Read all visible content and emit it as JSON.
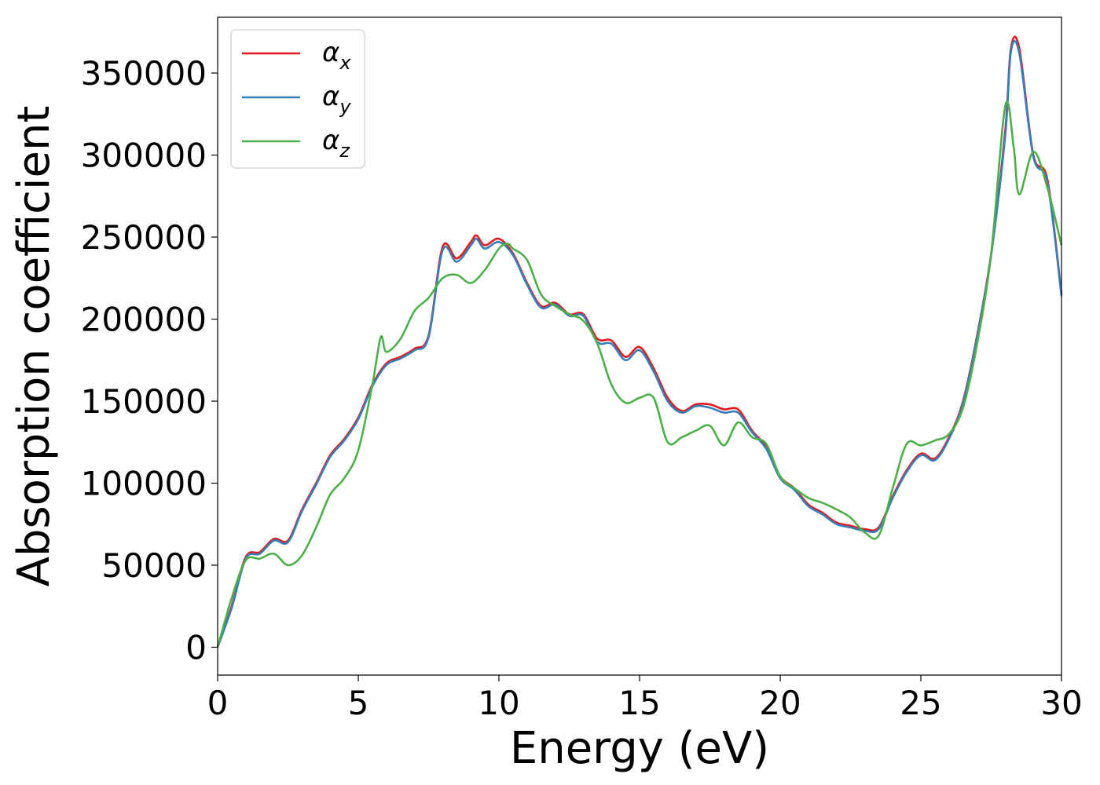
{
  "chart_data": {
    "type": "line",
    "title": "",
    "xlabel": "Energy (eV)",
    "ylabel": "Absorption coefficient",
    "xlim": [
      0,
      30
    ],
    "ylim": [
      -17000,
      384000
    ],
    "xticks": [
      0,
      5,
      10,
      15,
      20,
      25,
      30
    ],
    "xtick_labels": [
      "0",
      "5",
      "10",
      "15",
      "20",
      "25",
      "30"
    ],
    "yticks": [
      0,
      50000,
      100000,
      150000,
      200000,
      250000,
      300000,
      350000
    ],
    "ytick_labels": [
      "0",
      "50000",
      "100000",
      "150000",
      "200000",
      "250000",
      "300000",
      "350000"
    ],
    "grid": false,
    "legend_position": "top-left",
    "series": [
      {
        "name": "α",
        "subscript": "x",
        "color": "#e41a1c",
        "x": [
          0,
          0.5,
          1.0,
          1.5,
          2.0,
          2.5,
          3.0,
          3.5,
          4.0,
          4.5,
          5.0,
          5.5,
          6.0,
          6.5,
          7.0,
          7.5,
          8.0,
          8.5,
          9.0,
          9.2,
          9.5,
          10.0,
          10.5,
          11.0,
          11.5,
          12.0,
          12.5,
          13.0,
          13.5,
          14.0,
          14.5,
          15.0,
          15.5,
          16.0,
          16.5,
          17.0,
          17.5,
          18.0,
          18.5,
          19.0,
          19.5,
          20.0,
          20.5,
          21.0,
          21.5,
          22.0,
          22.5,
          23.0,
          23.5,
          24.0,
          24.5,
          25.0,
          25.5,
          26.0,
          26.5,
          27.0,
          27.5,
          28.0,
          28.2,
          28.5,
          29.0,
          29.5,
          30.0
        ],
        "y": [
          0,
          25000,
          55000,
          58000,
          66000,
          65000,
          84000,
          100000,
          117000,
          127000,
          140000,
          160000,
          173000,
          177000,
          182000,
          190000,
          244000,
          237000,
          247000,
          251000,
          245000,
          249000,
          240000,
          222000,
          208000,
          210000,
          203000,
          203000,
          188000,
          187000,
          177000,
          183000,
          170000,
          152000,
          144000,
          148000,
          148000,
          145000,
          145000,
          132000,
          122000,
          104000,
          97000,
          87000,
          82000,
          76000,
          74000,
          72000,
          73000,
          92000,
          108000,
          118000,
          115000,
          128000,
          150000,
          190000,
          240000,
          315000,
          365000,
          365000,
          300000,
          285000,
          215000
        ]
      },
      {
        "name": "α",
        "subscript": "y",
        "color": "#377eb8",
        "x": [
          0,
          0.5,
          1.0,
          1.5,
          2.0,
          2.5,
          3.0,
          3.5,
          4.0,
          4.5,
          5.0,
          5.5,
          6.0,
          6.5,
          7.0,
          7.5,
          8.0,
          8.5,
          9.0,
          9.2,
          9.5,
          10.0,
          10.5,
          11.0,
          11.5,
          12.0,
          12.5,
          13.0,
          13.5,
          14.0,
          14.5,
          15.0,
          15.5,
          16.0,
          16.5,
          17.0,
          17.5,
          18.0,
          18.5,
          19.0,
          19.5,
          20.0,
          20.5,
          21.0,
          21.5,
          22.0,
          22.5,
          23.0,
          23.5,
          24.0,
          24.5,
          25.0,
          25.5,
          26.0,
          26.5,
          27.0,
          27.5,
          28.0,
          28.2,
          28.5,
          29.0,
          29.5,
          30.0
        ],
        "y": [
          0,
          24000,
          54000,
          57000,
          65000,
          64000,
          83000,
          99000,
          116000,
          126000,
          139000,
          159000,
          172000,
          176000,
          181000,
          189000,
          242000,
          235000,
          245000,
          249000,
          243000,
          247000,
          239000,
          221000,
          207000,
          209000,
          202000,
          202000,
          186000,
          185000,
          175000,
          181000,
          168000,
          150000,
          143000,
          147000,
          146000,
          143000,
          143000,
          131000,
          121000,
          103000,
          96000,
          86000,
          81000,
          75000,
          73000,
          71000,
          72000,
          91000,
          107000,
          117000,
          114000,
          127000,
          149000,
          189000,
          239000,
          312000,
          363000,
          362000,
          299000,
          283000,
          214000
        ]
      },
      {
        "name": "α",
        "subscript": "z",
        "color": "#4daf4a",
        "x": [
          0,
          0.5,
          1.0,
          1.5,
          2.0,
          2.5,
          3.0,
          3.5,
          4.0,
          4.5,
          5.0,
          5.5,
          5.8,
          6.0,
          6.5,
          7.0,
          7.5,
          8.0,
          8.5,
          9.0,
          9.5,
          10.0,
          10.3,
          10.5,
          11.0,
          11.5,
          12.0,
          12.5,
          13.0,
          13.5,
          14.0,
          14.5,
          15.0,
          15.5,
          16.0,
          16.5,
          17.0,
          17.5,
          18.0,
          18.5,
          19.0,
          19.5,
          20.0,
          20.5,
          21.0,
          21.5,
          22.0,
          22.5,
          23.0,
          23.5,
          24.0,
          24.5,
          25.0,
          25.5,
          26.0,
          26.5,
          27.0,
          27.5,
          28.0,
          28.3,
          28.5,
          29.0,
          29.5,
          30.0
        ],
        "y": [
          0,
          30000,
          53000,
          54000,
          57000,
          50000,
          56000,
          73000,
          93000,
          103000,
          120000,
          160000,
          189000,
          180000,
          188000,
          205000,
          213000,
          225000,
          227000,
          222000,
          230000,
          243000,
          246000,
          243000,
          236000,
          215000,
          208000,
          203000,
          199000,
          185000,
          160000,
          149000,
          152000,
          152000,
          125000,
          128000,
          132000,
          135000,
          123000,
          137000,
          128000,
          124000,
          104000,
          97000,
          91000,
          88000,
          84000,
          79000,
          70000,
          68000,
          97000,
          124000,
          123000,
          126000,
          130000,
          146000,
          185000,
          240000,
          330000,
          305000,
          276000,
          302000,
          280000,
          245000
        ]
      }
    ]
  }
}
